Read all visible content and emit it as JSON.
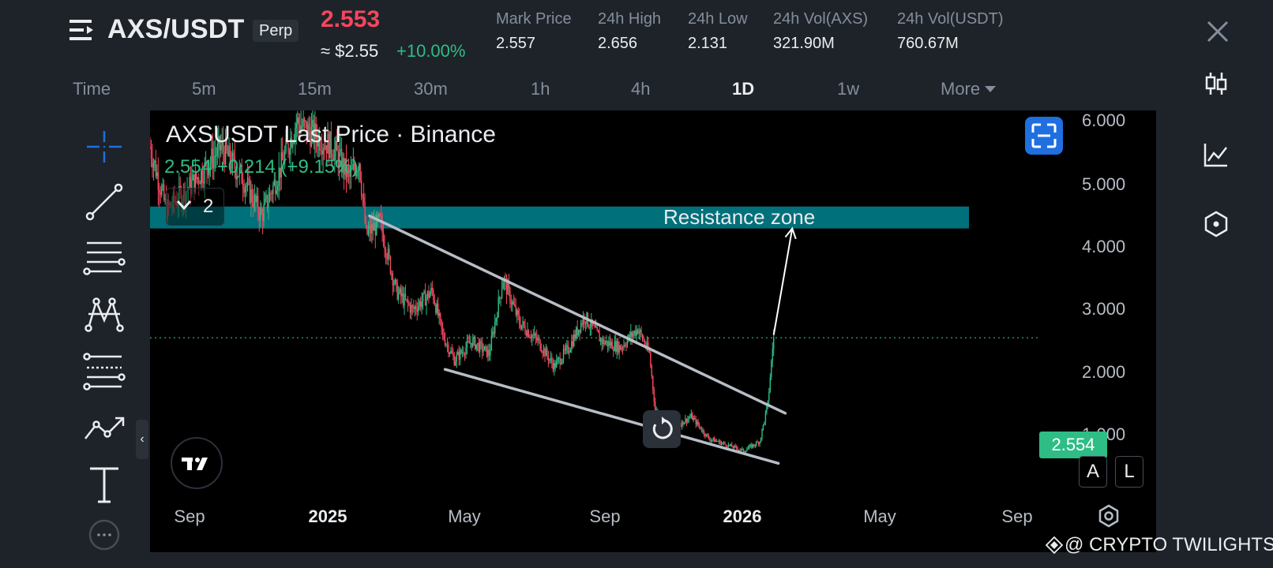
{
  "header": {
    "pair": "AXS/USDT",
    "contract_type": "Perp",
    "last_price": "2.553",
    "usd_price": "≈ $2.55",
    "change_pct": "+10.00%",
    "stats": [
      {
        "label": "Mark Price",
        "value": "2.557"
      },
      {
        "label": "24h High",
        "value": "2.656"
      },
      {
        "label": "24h Low",
        "value": "2.131"
      },
      {
        "label": "24h Vol(AXS)",
        "value": "321.90M"
      },
      {
        "label": "24h Vol(USDT)",
        "value": "760.67M"
      }
    ]
  },
  "intervals": [
    "Time",
    "5m",
    "15m",
    "30m",
    "1h",
    "4h",
    "1D",
    "1w",
    "More"
  ],
  "active_interval": "1D",
  "chart": {
    "legend_title": "AXSUSDT Last Price · Binance",
    "legend_values": "2.554 +0.214 (+9.15%)",
    "indicator_count": "2",
    "annotation": "Resistance zone",
    "current_price_tag": "2.554",
    "price_axis": [
      "6.000",
      "5.000",
      "4.000",
      "3.000",
      "2.000",
      "1.000"
    ],
    "time_axis": [
      "Sep",
      "2025",
      "May",
      "Sep",
      "2026",
      "May",
      "Sep"
    ],
    "scale_buttons": [
      "A",
      "L"
    ]
  },
  "chart_data": {
    "type": "candlestick",
    "title": "AXSUSDT Last Price · Binance",
    "x_ticks": [
      "Sep",
      "2025",
      "May",
      "Sep",
      "2026",
      "May",
      "Sep"
    ],
    "y_ticks": [
      6.0,
      5.0,
      4.0,
      3.0,
      2.0,
      1.0
    ],
    "ylim": [
      0.0,
      6.1
    ],
    "current_price": 2.554,
    "resistance_zone": [
      4.3,
      4.65
    ],
    "price_path": [
      [
        "2024-08-01",
        5.6
      ],
      [
        "2024-08-15",
        4.6
      ],
      [
        "2024-09-01",
        4.9
      ],
      [
        "2024-09-15",
        5.2
      ],
      [
        "2024-10-01",
        5.6
      ],
      [
        "2024-10-20",
        5.1
      ],
      [
        "2024-11-05",
        4.5
      ],
      [
        "2024-11-20",
        5.2
      ],
      [
        "2024-12-05",
        6.0
      ],
      [
        "2024-12-20",
        5.8
      ],
      [
        "2025-01-05",
        5.6
      ],
      [
        "2025-01-20",
        5.1
      ],
      [
        "2025-01-28",
        5.4
      ],
      [
        "2025-02-03",
        4.2
      ],
      [
        "2025-02-15",
        4.4
      ],
      [
        "2025-03-01",
        3.3
      ],
      [
        "2025-03-15",
        3.0
      ],
      [
        "2025-04-01",
        3.3
      ],
      [
        "2025-04-10",
        2.6
      ],
      [
        "2025-04-20",
        2.2
      ],
      [
        "2025-05-05",
        2.5
      ],
      [
        "2025-05-20",
        2.3
      ],
      [
        "2025-06-01",
        3.5
      ],
      [
        "2025-06-15",
        2.8
      ],
      [
        "2025-07-01",
        2.5
      ],
      [
        "2025-07-15",
        2.1
      ],
      [
        "2025-07-28",
        2.4
      ],
      [
        "2025-08-10",
        2.9
      ],
      [
        "2025-08-25",
        2.5
      ],
      [
        "2025-09-10",
        2.4
      ],
      [
        "2025-09-25",
        2.7
      ],
      [
        "2025-10-05",
        2.3
      ],
      [
        "2025-10-10",
        1.4
      ],
      [
        "2025-10-25",
        1.1
      ],
      [
        "2025-11-10",
        1.3
      ],
      [
        "2025-11-25",
        0.95
      ],
      [
        "2025-12-10",
        0.85
      ],
      [
        "2025-12-25",
        0.75
      ],
      [
        "2026-01-08",
        0.9
      ],
      [
        "2026-01-15",
        1.5
      ],
      [
        "2026-01-20",
        2.6
      ]
    ],
    "trendlines": [
      {
        "name": "upper",
        "from": [
          "2025-02-06",
          4.5
        ],
        "to": [
          "2026-01-30",
          1.35
        ]
      },
      {
        "name": "lower",
        "from": [
          "2025-04-12",
          2.05
        ],
        "to": [
          "2026-01-24",
          0.55
        ]
      }
    ],
    "projection_arrow": {
      "from": [
        "2026-01-20",
        2.6
      ],
      "to": [
        "2026-02-05",
        4.3
      ]
    }
  },
  "icons": {
    "menu": "menu-icon",
    "close": "close-icon",
    "toolbar": [
      "crosshair-icon",
      "trendline-icon",
      "horizontal-lines-icon",
      "pattern-icon",
      "fib-icon",
      "path-icon",
      "text-icon",
      "more-tools-icon"
    ],
    "sidebar": [
      "candles-icon",
      "indicators-icon",
      "settings-icon"
    ]
  },
  "watermark": "@ CRYPTO TWILIGHTS"
}
